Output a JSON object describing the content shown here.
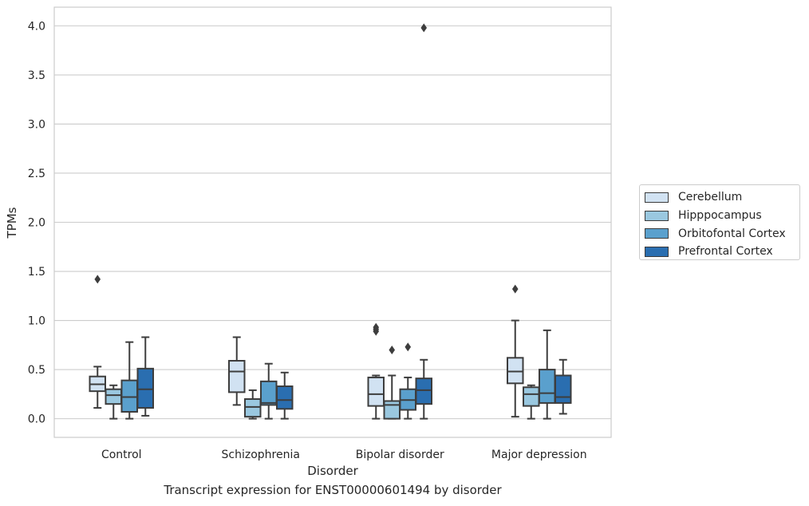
{
  "caption": "Transcript expression for ENST00000601494 by disorder",
  "chart_data": {
    "type": "boxplot",
    "xlabel": "Disorder",
    "ylabel": "TPMs",
    "ylim": [
      -0.19,
      4.19
    ],
    "yticks": [
      "0.0",
      "0.5",
      "1.0",
      "1.5",
      "2.0",
      "2.5",
      "3.0",
      "3.5",
      "4.0"
    ],
    "ytick_values": [
      0,
      0.5,
      1.0,
      1.5,
      2.0,
      2.5,
      3.0,
      3.5,
      4.0
    ],
    "grid": "horizontal",
    "legend_position": "right",
    "categories": [
      "Control",
      "Schizophrenia",
      "Bipolar disorder",
      "Major depression"
    ],
    "series": [
      {
        "name": "Cerebellum",
        "color": "#d1e2f2",
        "boxes": [
          {
            "whislo": 0.11,
            "q1": 0.28,
            "med": 0.35,
            "q3": 0.43,
            "whishi": 0.53,
            "fliers": [
              1.42
            ]
          },
          {
            "whislo": 0.14,
            "q1": 0.27,
            "med": 0.48,
            "q3": 0.59,
            "whishi": 0.83,
            "fliers": []
          },
          {
            "whislo": 0.0,
            "q1": 0.13,
            "med": 0.25,
            "q3": 0.42,
            "whishi": 0.44,
            "fliers": [
              0.89,
              0.91,
              0.93
            ]
          },
          {
            "whislo": 0.02,
            "q1": 0.36,
            "med": 0.48,
            "q3": 0.62,
            "whishi": 1.0,
            "fliers": [
              1.32
            ]
          }
        ]
      },
      {
        "name": "Hipppocampus",
        "color": "#9ac8e0",
        "boxes": [
          {
            "whislo": 0.0,
            "q1": 0.15,
            "med": 0.24,
            "q3": 0.3,
            "whishi": 0.34,
            "fliers": []
          },
          {
            "whislo": 0.0,
            "q1": 0.02,
            "med": 0.12,
            "q3": 0.2,
            "whishi": 0.29,
            "fliers": []
          },
          {
            "whislo": 0.0,
            "q1": 0.0,
            "med": 0.14,
            "q3": 0.18,
            "whishi": 0.44,
            "fliers": [
              0.7
            ]
          },
          {
            "whislo": 0.0,
            "q1": 0.13,
            "med": 0.25,
            "q3": 0.32,
            "whishi": 0.34,
            "fliers": []
          }
        ]
      },
      {
        "name": "Orbitofontal Cortex",
        "color": "#5aa0cd",
        "boxes": [
          {
            "whislo": 0.0,
            "q1": 0.07,
            "med": 0.22,
            "q3": 0.39,
            "whishi": 0.78,
            "fliers": []
          },
          {
            "whislo": 0.0,
            "q1": 0.14,
            "med": 0.16,
            "q3": 0.38,
            "whishi": 0.56,
            "fliers": []
          },
          {
            "whislo": 0.0,
            "q1": 0.09,
            "med": 0.19,
            "q3": 0.3,
            "whishi": 0.42,
            "fliers": [
              0.73
            ]
          },
          {
            "whislo": 0.0,
            "q1": 0.16,
            "med": 0.26,
            "q3": 0.5,
            "whishi": 0.9,
            "fliers": []
          }
        ]
      },
      {
        "name": "Prefrontal Cortex",
        "color": "#2a6eb0",
        "boxes": [
          {
            "whislo": 0.03,
            "q1": 0.11,
            "med": 0.3,
            "q3": 0.51,
            "whishi": 0.83,
            "fliers": []
          },
          {
            "whislo": 0.0,
            "q1": 0.1,
            "med": 0.19,
            "q3": 0.33,
            "whishi": 0.47,
            "fliers": []
          },
          {
            "whislo": 0.0,
            "q1": 0.15,
            "med": 0.29,
            "q3": 0.41,
            "whishi": 0.6,
            "fliers": [
              3.98
            ]
          },
          {
            "whislo": 0.05,
            "q1": 0.16,
            "med": 0.22,
            "q3": 0.44,
            "whishi": 0.6,
            "fliers": []
          }
        ]
      }
    ]
  }
}
